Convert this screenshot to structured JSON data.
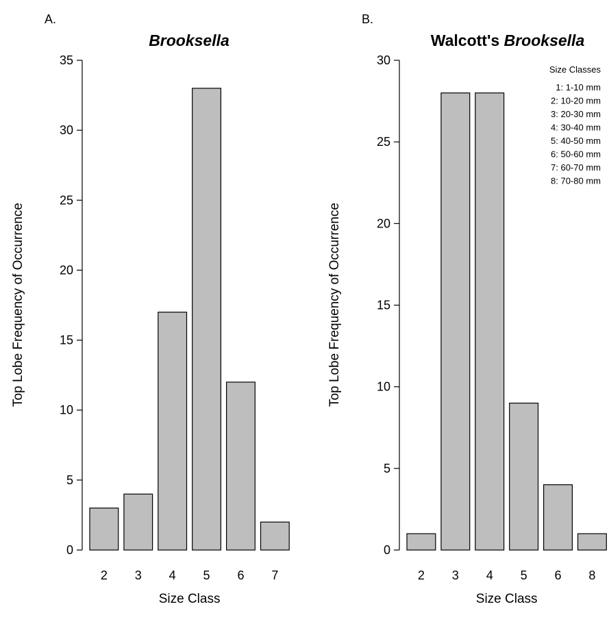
{
  "chart_data": [
    {
      "type": "bar",
      "panel_label": "A.",
      "title": "Brooksella",
      "title_plain": "",
      "title_italic": "Brooksella",
      "categories": [
        "2",
        "3",
        "4",
        "5",
        "6",
        "7"
      ],
      "values": [
        3,
        4,
        17,
        33,
        12,
        2
      ],
      "xlabel": "Size Class",
      "ylabel": "Top Lobe Frequency of Occurrence",
      "ylim": [
        0,
        35
      ],
      "yticks": [
        0,
        5,
        10,
        15,
        20,
        25,
        30,
        35
      ],
      "grid": false,
      "bar_color": "#bebebe"
    },
    {
      "type": "bar",
      "panel_label": "B.",
      "title": "Walcott's Brooksella",
      "title_plain": "Walcott's ",
      "title_italic": "Brooksella",
      "categories": [
        "2",
        "3",
        "4",
        "5",
        "6",
        "8"
      ],
      "values": [
        1,
        28,
        28,
        9,
        4,
        1
      ],
      "xlabel": "Size Class",
      "ylabel": "Top Lobe Frequency of Occurrence",
      "ylim": [
        0,
        30
      ],
      "yticks": [
        0,
        5,
        10,
        15,
        20,
        25,
        30
      ],
      "grid": false,
      "bar_color": "#bebebe",
      "legend": {
        "title": "Size Classes",
        "placement": "top-right",
        "items": [
          "1: 1-10 mm",
          "2: 10-20 mm",
          "3: 20-30 mm",
          "4: 30-40 mm",
          "5: 40-50 mm",
          "6: 50-60 mm",
          "7: 60-70 mm",
          "8: 70-80 mm"
        ]
      }
    }
  ]
}
